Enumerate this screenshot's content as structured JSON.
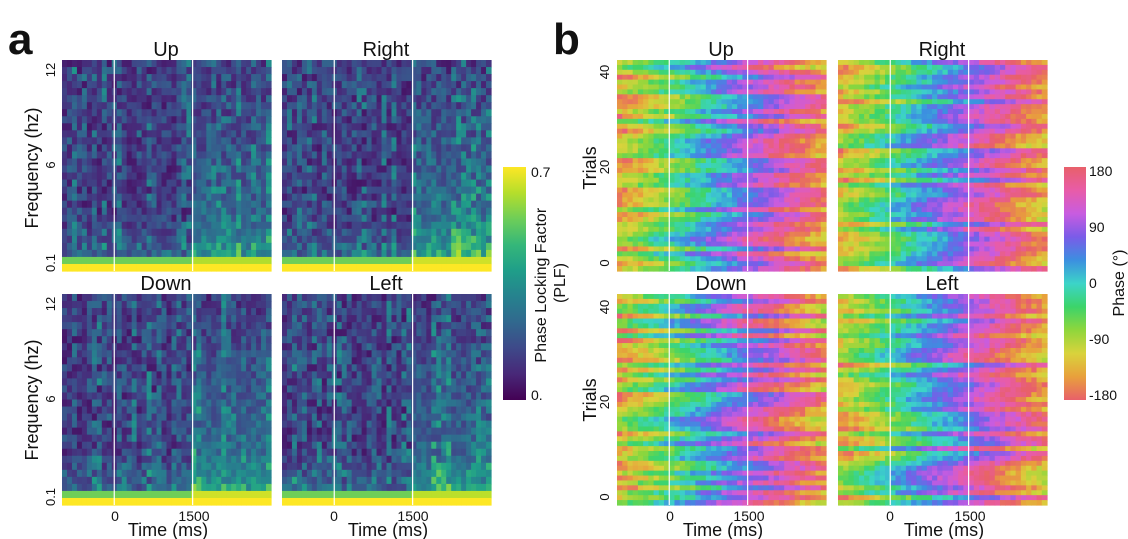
{
  "figure": {
    "panel_a_letter": "a",
    "panel_b_letter": "b"
  },
  "colors": {
    "viridis": [
      "#440154",
      "#482878",
      "#3e4989",
      "#31688e",
      "#26828e",
      "#1f9e89",
      "#35b779",
      "#6ece58",
      "#b5de2b",
      "#fde725"
    ],
    "phase": [
      "#e8606a",
      "#e8a03c",
      "#d9d33c",
      "#8fd63c",
      "#3cd46a",
      "#3cd4c8",
      "#3c8fe0",
      "#7a5ce8",
      "#c85ce0",
      "#e85ca8",
      "#e8606a"
    ],
    "event_line": "#ffffff"
  },
  "chart_data": [
    {
      "type": "heatmap",
      "panel": "a",
      "metric": "Phase Locking Factor (PLF)",
      "colormap": "viridis",
      "xlabel": "Time (ms)",
      "ylabel": "Frequency (hz)",
      "x_ticks": [
        "0",
        "1500"
      ],
      "y_ticks": [
        "0.1",
        "6",
        "12"
      ],
      "x_range_ms": [
        -1000,
        3000
      ],
      "y_range_hz": [
        0.1,
        12
      ],
      "event_lines_ms": [
        0,
        1500
      ],
      "colorbar": {
        "label_line1": "Phase Locking Factor",
        "label_line2": "(PLF)",
        "min_label": "0.",
        "max_label": "0.7",
        "range": [
          0,
          0.7
        ]
      },
      "subplots": [
        {
          "title": "Up",
          "low_freq_band_plf": 0.7,
          "post_cue_band_plf": 0.55
        },
        {
          "title": "Right",
          "low_freq_band_plf": 0.7,
          "post_cue_band_plf": 0.7
        },
        {
          "title": "Down",
          "low_freq_band_plf": 0.7,
          "post_cue_band_plf": 0.7
        },
        {
          "title": "Left",
          "low_freq_band_plf": 0.7,
          "post_cue_band_plf": 0.6
        }
      ]
    },
    {
      "type": "heatmap",
      "panel": "b",
      "metric": "Phase",
      "colormap": "cyclic phase",
      "xlabel": "Time (ms)",
      "ylabel": "Trials",
      "x_ticks": [
        "0",
        "1500"
      ],
      "y_ticks": [
        "0",
        "20",
        "40"
      ],
      "x_range_ms": [
        -1000,
        3000
      ],
      "trials_range": [
        0,
        43
      ],
      "event_lines_ms": [
        0,
        1500
      ],
      "colorbar": {
        "label": "Phase (°)",
        "ticks": [
          "180",
          "90",
          "0",
          "-90",
          "-180"
        ],
        "range": [
          -180,
          180
        ]
      },
      "subplots": [
        {
          "title": "Up"
        },
        {
          "title": "Right"
        },
        {
          "title": "Down"
        },
        {
          "title": "Left"
        }
      ]
    }
  ]
}
